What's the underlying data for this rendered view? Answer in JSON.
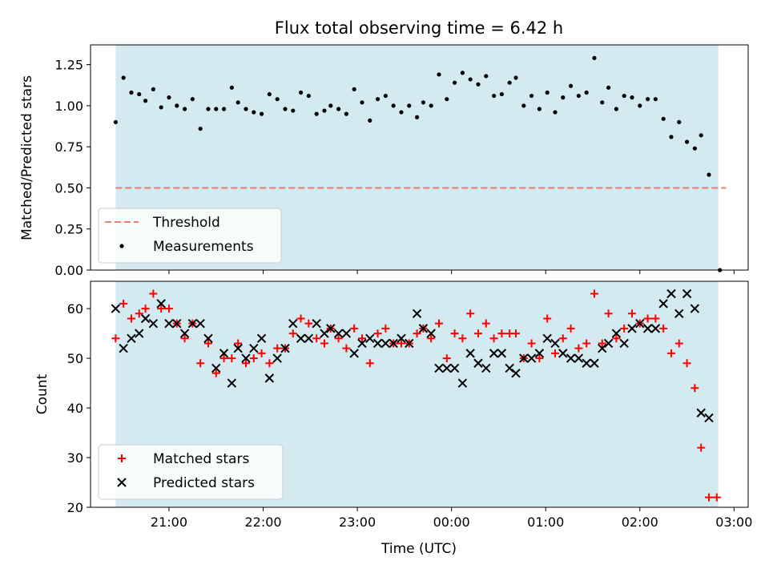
{
  "title": "Flux total observing time = 6.42 h",
  "xlabel": "Time (UTC)",
  "colors": {
    "shade": "#d3eaf0",
    "threshold": "#ef7a78",
    "matched": "#ff0000",
    "measurement": "#000000",
    "predicted": "#000000"
  },
  "chart_data": [
    {
      "type": "scatter",
      "panel": "top",
      "ylabel": "Matched/Predicted stars",
      "ylim": [
        0.0,
        1.37
      ],
      "yticks": [
        "0.00",
        "0.25",
        "0.50",
        "0.75",
        "1.00",
        "1.25"
      ],
      "xlim": [
        "20:10",
        "03:09"
      ],
      "xticks": [
        "21:00",
        "22:00",
        "23:00",
        "00:00",
        "01:00",
        "02:00",
        "03:00"
      ],
      "shaded_interval": [
        "20:26",
        "02:50"
      ],
      "threshold": {
        "name": "Threshold",
        "y": 0.5,
        "x_range": [
          "20:26",
          "02:55"
        ],
        "style": "dashed"
      },
      "series": [
        {
          "name": "Measurements",
          "marker": "dot",
          "points": [
            [
              "20:26",
              0.9
            ],
            [
              "20:31",
              1.17
            ],
            [
              "20:36",
              1.08
            ],
            [
              "20:41",
              1.07
            ],
            [
              "20:45",
              1.03
            ],
            [
              "20:50",
              1.1
            ],
            [
              "20:55",
              0.99
            ],
            [
              "21:00",
              1.05
            ],
            [
              "21:05",
              1.0
            ],
            [
              "21:10",
              0.98
            ],
            [
              "21:15",
              1.04
            ],
            [
              "21:20",
              0.86
            ],
            [
              "21:25",
              0.98
            ],
            [
              "21:30",
              0.98
            ],
            [
              "21:35",
              0.98
            ],
            [
              "21:40",
              1.11
            ],
            [
              "21:44",
              1.02
            ],
            [
              "21:49",
              0.98
            ],
            [
              "21:54",
              0.96
            ],
            [
              "21:59",
              0.95
            ],
            [
              "22:04",
              1.07
            ],
            [
              "22:09",
              1.04
            ],
            [
              "22:14",
              0.98
            ],
            [
              "22:19",
              0.97
            ],
            [
              "22:24",
              1.08
            ],
            [
              "22:29",
              1.06
            ],
            [
              "22:34",
              0.95
            ],
            [
              "22:39",
              0.97
            ],
            [
              "22:43",
              1.0
            ],
            [
              "22:48",
              0.98
            ],
            [
              "22:53",
              0.95
            ],
            [
              "22:58",
              1.1
            ],
            [
              "23:03",
              1.02
            ],
            [
              "23:08",
              0.91
            ],
            [
              "23:13",
              1.04
            ],
            [
              "23:18",
              1.06
            ],
            [
              "23:23",
              1.0
            ],
            [
              "23:28",
              0.96
            ],
            [
              "23:33",
              1.0
            ],
            [
              "23:38",
              0.93
            ],
            [
              "23:42",
              1.02
            ],
            [
              "23:47",
              1.0
            ],
            [
              "23:52",
              1.19
            ],
            [
              "23:57",
              1.04
            ],
            [
              "00:02",
              1.14
            ],
            [
              "00:07",
              1.2
            ],
            [
              "00:12",
              1.16
            ],
            [
              "00:17",
              1.13
            ],
            [
              "00:22",
              1.18
            ],
            [
              "00:27",
              1.06
            ],
            [
              "00:32",
              1.07
            ],
            [
              "00:37",
              1.14
            ],
            [
              "00:41",
              1.17
            ],
            [
              "00:46",
              1.0
            ],
            [
              "00:51",
              1.06
            ],
            [
              "00:56",
              0.98
            ],
            [
              "01:01",
              1.08
            ],
            [
              "01:06",
              0.96
            ],
            [
              "01:11",
              1.05
            ],
            [
              "01:16",
              1.12
            ],
            [
              "01:21",
              1.06
            ],
            [
              "01:26",
              1.08
            ],
            [
              "01:31",
              1.29
            ],
            [
              "01:36",
              1.02
            ],
            [
              "01:40",
              1.11
            ],
            [
              "01:45",
              0.98
            ],
            [
              "01:50",
              1.06
            ],
            [
              "01:55",
              1.05
            ],
            [
              "02:00",
              1.0
            ],
            [
              "02:05",
              1.04
            ],
            [
              "02:10",
              1.04
            ],
            [
              "02:15",
              0.92
            ],
            [
              "02:20",
              0.81
            ],
            [
              "02:25",
              0.9
            ],
            [
              "02:30",
              0.78
            ],
            [
              "02:35",
              0.74
            ],
            [
              "02:39",
              0.82
            ],
            [
              "02:44",
              0.58
            ],
            [
              "02:51",
              0.0
            ]
          ]
        }
      ],
      "legend": [
        "Threshold",
        "Measurements"
      ],
      "legend_position": "lower-left"
    },
    {
      "type": "scatter",
      "panel": "bottom",
      "ylabel": "Count",
      "ylim": [
        20,
        65.5
      ],
      "yticks": [
        "20",
        "30",
        "40",
        "50",
        "60"
      ],
      "xlim": [
        "20:10",
        "03:09"
      ],
      "xticks": [
        "21:00",
        "22:00",
        "23:00",
        "00:00",
        "01:00",
        "02:00",
        "03:00"
      ],
      "shaded_interval": [
        "20:26",
        "02:50"
      ],
      "series": [
        {
          "name": "Matched stars",
          "marker": "plus",
          "points": [
            [
              "20:26",
              54
            ],
            [
              "20:31",
              61
            ],
            [
              "20:36",
              58
            ],
            [
              "20:41",
              59
            ],
            [
              "20:45",
              60
            ],
            [
              "20:50",
              63
            ],
            [
              "20:55",
              60
            ],
            [
              "21:00",
              60
            ],
            [
              "21:05",
              57
            ],
            [
              "21:10",
              54
            ],
            [
              "21:15",
              57
            ],
            [
              "21:20",
              49
            ],
            [
              "21:25",
              53
            ],
            [
              "21:30",
              47
            ],
            [
              "21:35",
              50
            ],
            [
              "21:40",
              50
            ],
            [
              "21:44",
              53
            ],
            [
              "21:49",
              49
            ],
            [
              "21:54",
              50
            ],
            [
              "21:59",
              51
            ],
            [
              "22:04",
              49
            ],
            [
              "22:09",
              52
            ],
            [
              "22:14",
              52
            ],
            [
              "22:19",
              55
            ],
            [
              "22:24",
              58
            ],
            [
              "22:29",
              57
            ],
            [
              "22:34",
              54
            ],
            [
              "22:39",
              53
            ],
            [
              "22:43",
              56
            ],
            [
              "22:48",
              54
            ],
            [
              "22:53",
              52
            ],
            [
              "22:58",
              56
            ],
            [
              "23:03",
              54
            ],
            [
              "23:08",
              49
            ],
            [
              "23:13",
              55
            ],
            [
              "23:18",
              56
            ],
            [
              "23:23",
              53
            ],
            [
              "23:28",
              53
            ],
            [
              "23:33",
              53
            ],
            [
              "23:38",
              55
            ],
            [
              "23:42",
              56
            ],
            [
              "23:47",
              54
            ],
            [
              "23:52",
              57
            ],
            [
              "23:57",
              50
            ],
            [
              "00:02",
              55
            ],
            [
              "00:07",
              54
            ],
            [
              "00:12",
              59
            ],
            [
              "00:17",
              55
            ],
            [
              "00:22",
              57
            ],
            [
              "00:27",
              54
            ],
            [
              "00:32",
              55
            ],
            [
              "00:37",
              55
            ],
            [
              "00:41",
              55
            ],
            [
              "00:46",
              50
            ],
            [
              "00:51",
              53
            ],
            [
              "00:56",
              50
            ],
            [
              "01:01",
              58
            ],
            [
              "01:06",
              51
            ],
            [
              "01:11",
              54
            ],
            [
              "01:16",
              56
            ],
            [
              "01:21",
              52
            ],
            [
              "01:26",
              53
            ],
            [
              "01:31",
              63
            ],
            [
              "01:36",
              53
            ],
            [
              "01:40",
              59
            ],
            [
              "01:45",
              54
            ],
            [
              "01:50",
              56
            ],
            [
              "01:55",
              59
            ],
            [
              "02:00",
              57
            ],
            [
              "02:05",
              58
            ],
            [
              "02:10",
              58
            ],
            [
              "02:15",
              56
            ],
            [
              "02:20",
              51
            ],
            [
              "02:25",
              53
            ],
            [
              "02:30",
              49
            ],
            [
              "02:35",
              44
            ],
            [
              "02:39",
              32
            ],
            [
              "02:44",
              22
            ],
            [
              "02:49",
              22
            ]
          ]
        },
        {
          "name": "Predicted stars",
          "marker": "x",
          "points": [
            [
              "20:26",
              60
            ],
            [
              "20:31",
              52
            ],
            [
              "20:36",
              54
            ],
            [
              "20:41",
              55
            ],
            [
              "20:45",
              58
            ],
            [
              "20:50",
              57
            ],
            [
              "20:55",
              61
            ],
            [
              "21:00",
              57
            ],
            [
              "21:05",
              57
            ],
            [
              "21:10",
              55
            ],
            [
              "21:15",
              57
            ],
            [
              "21:20",
              57
            ],
            [
              "21:25",
              54
            ],
            [
              "21:30",
              48
            ],
            [
              "21:35",
              51
            ],
            [
              "21:40",
              45
            ],
            [
              "21:44",
              52
            ],
            [
              "21:49",
              50
            ],
            [
              "21:54",
              52
            ],
            [
              "21:59",
              54
            ],
            [
              "22:04",
              46
            ],
            [
              "22:09",
              50
            ],
            [
              "22:14",
              52
            ],
            [
              "22:19",
              57
            ],
            [
              "22:24",
              54
            ],
            [
              "22:29",
              54
            ],
            [
              "22:34",
              57
            ],
            [
              "22:39",
              55
            ],
            [
              "22:43",
              56
            ],
            [
              "22:48",
              55
            ],
            [
              "22:53",
              55
            ],
            [
              "22:58",
              51
            ],
            [
              "23:03",
              53
            ],
            [
              "23:08",
              54
            ],
            [
              "23:13",
              53
            ],
            [
              "23:18",
              53
            ],
            [
              "23:23",
              53
            ],
            [
              "23:28",
              54
            ],
            [
              "23:33",
              53
            ],
            [
              "23:38",
              59
            ],
            [
              "23:42",
              56
            ],
            [
              "23:47",
              55
            ],
            [
              "23:52",
              48
            ],
            [
              "23:57",
              48
            ],
            [
              "00:02",
              48
            ],
            [
              "00:07",
              45
            ],
            [
              "00:12",
              51
            ],
            [
              "00:17",
              49
            ],
            [
              "00:22",
              48
            ],
            [
              "00:27",
              51
            ],
            [
              "00:32",
              51
            ],
            [
              "00:37",
              48
            ],
            [
              "00:41",
              47
            ],
            [
              "00:46",
              50
            ],
            [
              "00:51",
              50
            ],
            [
              "00:56",
              51
            ],
            [
              "01:01",
              54
            ],
            [
              "01:06",
              53
            ],
            [
              "01:11",
              51
            ],
            [
              "01:16",
              50
            ],
            [
              "01:21",
              50
            ],
            [
              "01:26",
              49
            ],
            [
              "01:31",
              49
            ],
            [
              "01:36",
              52
            ],
            [
              "01:40",
              53
            ],
            [
              "01:45",
              55
            ],
            [
              "01:50",
              53
            ],
            [
              "01:55",
              56
            ],
            [
              "02:00",
              57
            ],
            [
              "02:05",
              56
            ],
            [
              "02:10",
              56
            ],
            [
              "02:15",
              61
            ],
            [
              "02:20",
              63
            ],
            [
              "02:25",
              59
            ],
            [
              "02:30",
              63
            ],
            [
              "02:35",
              60
            ],
            [
              "02:39",
              39
            ],
            [
              "02:44",
              38
            ]
          ]
        }
      ],
      "legend": [
        "Matched stars",
        "Predicted stars"
      ],
      "legend_position": "lower-left"
    }
  ]
}
